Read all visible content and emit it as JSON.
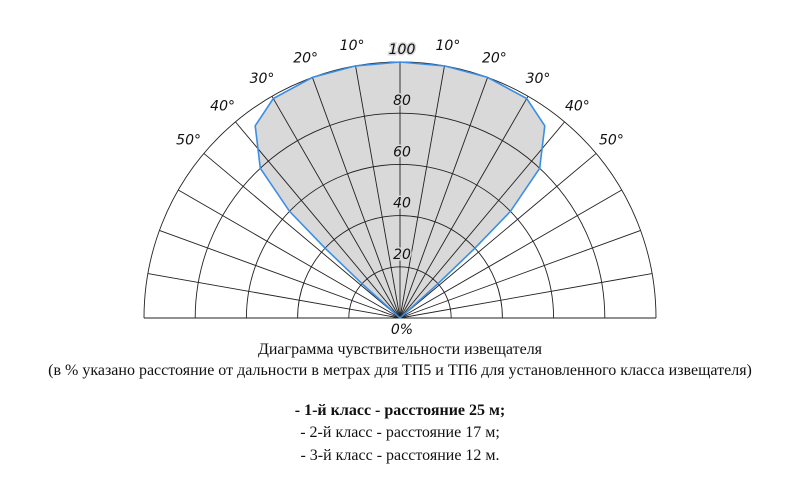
{
  "chart_data": {
    "type": "polar-area",
    "x": [
      -48,
      -48,
      -47,
      -46,
      -43,
      -37,
      -30,
      -20,
      -10,
      0,
      10,
      20,
      30,
      37,
      43,
      46,
      47,
      48,
      48
    ],
    "values": [
      0,
      20,
      40,
      60,
      80,
      94,
      99,
      100,
      100,
      100,
      100,
      100,
      99,
      94,
      80,
      60,
      40,
      20,
      0
    ],
    "fill": "#d9d9d9",
    "color": "#3a8ee6",
    "xlim": [
      -90,
      90
    ],
    "xticks": [
      {
        "value": -90,
        "label": null
      },
      {
        "value": -80,
        "label": null
      },
      {
        "value": -70,
        "label": null
      },
      {
        "value": -60,
        "label": null
      },
      {
        "value": -50,
        "label": "50°"
      },
      {
        "value": -40,
        "label": "40°"
      },
      {
        "value": -30,
        "label": "30°"
      },
      {
        "value": -20,
        "label": "20°"
      },
      {
        "value": -10,
        "label": "10°"
      },
      {
        "value": 0,
        "label": null
      },
      {
        "value": 10,
        "label": "10°"
      },
      {
        "value": 20,
        "label": "20°"
      },
      {
        "value": 30,
        "label": "30°"
      },
      {
        "value": 40,
        "label": "40°"
      },
      {
        "value": 50,
        "label": "50°"
      },
      {
        "value": 60,
        "label": null
      },
      {
        "value": 70,
        "label": null
      },
      {
        "value": 80,
        "label": null
      },
      {
        "value": 90,
        "label": null
      }
    ],
    "ylim": [
      0,
      100
    ],
    "yticks": [
      20,
      40,
      60,
      80,
      100
    ],
    "center_label": "0%",
    "title": "Диаграмма чувствительности извещателя",
    "subtitle": "(в % указано расстояние от дальности в метрах для ТП5 и ТП6 для установленного класса извещателя)",
    "notes": [
      "- 1-й класс - расстояние 25 м;",
      "- 2-й класс - расстояние 17 м;",
      "- 3-й класс - расстояние 12 м."
    ]
  }
}
